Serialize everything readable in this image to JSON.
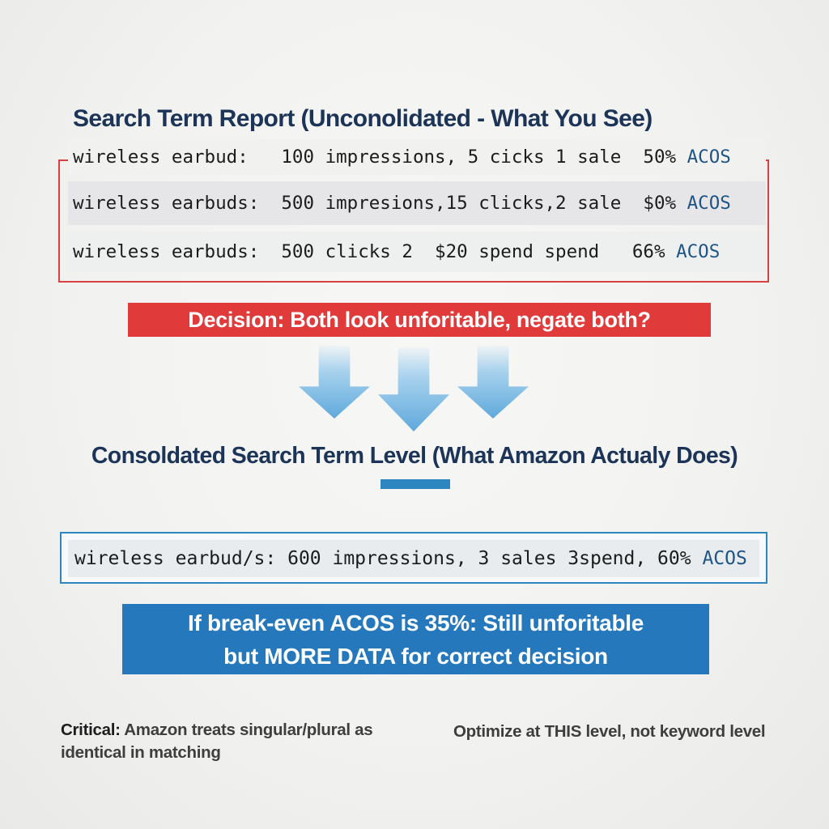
{
  "colors": {
    "title_navy": "#1b3457",
    "red_border": "#d64242",
    "red_banner_bg": "#e03a3a",
    "blue_banner_bg": "#2578bc",
    "blue_accent": "#2e86c1",
    "acos_blue": "#1f5586",
    "arrow_blue": "#5fa9db",
    "note_gray": "#3e3e3e"
  },
  "unconsolidated": {
    "title": "Search Term Report (Unconolidated - What You See)",
    "rows": [
      {
        "term": "wireless earbud:",
        "stats": "   100 impressions, 5 cicks 1 sale  50% ",
        "acos": "ACOS"
      },
      {
        "term": "wireless earbuds:",
        "stats": "  500 impresions,15 clicks,2 sale  $0% ",
        "acos": "ACOS"
      },
      {
        "term": "wireless earbuds:",
        "stats": "  500 clicks 2  $20 spend spend   66% ",
        "acos": "ACOS"
      }
    ]
  },
  "decision": {
    "text": "Decision: Both look unforitable, negate both?"
  },
  "arrows": {
    "icon": "down-arrow",
    "count": 3
  },
  "consolidated": {
    "title": "Consoldated Search Term Level (What Amazon Actualy Does)",
    "row": {
      "term": "wireless earbud/s:",
      "stats": " 600 impressions, 3 sales 3spend, 60% ",
      "acos": "ACOS"
    },
    "banner_line1": "If break-even ACOS is 35%: Still unforitable",
    "banner_line2": "but MORE DATA for correct decision"
  },
  "notes": {
    "left_label": "Critical:",
    "left_text": " Amazon treats singular/plural as identical in matching",
    "right_text": "Optimize at THIS level, not keyword level"
  }
}
